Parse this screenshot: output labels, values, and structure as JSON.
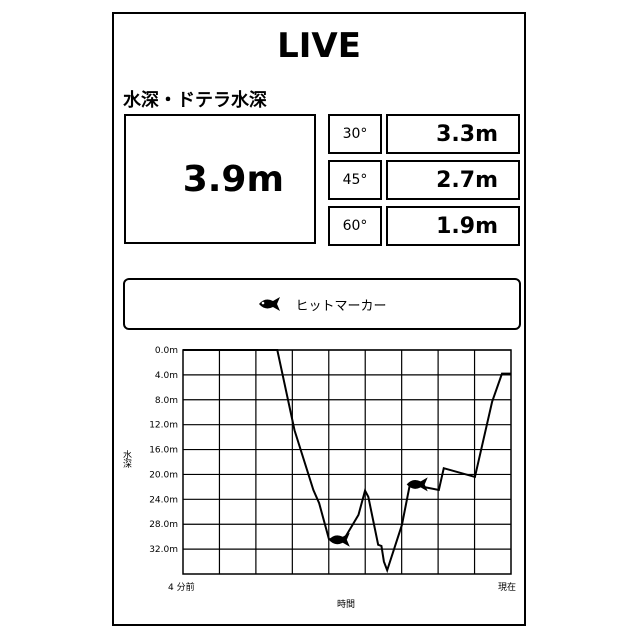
{
  "header": {
    "title": "LIVE"
  },
  "depth_section": {
    "label": "水深・ドテラ水深",
    "main_depth": "3.9m",
    "angles": [
      {
        "angle": "30°",
        "value": "3.3m"
      },
      {
        "angle": "45°",
        "value": "2.7m"
      },
      {
        "angle": "60°",
        "value": "1.9m"
      }
    ]
  },
  "hit_marker_button": {
    "label": "ヒットマーカー",
    "icon": "fish-icon"
  },
  "chart_data": {
    "type": "line",
    "xlabel": "時間",
    "ylabel": "水深",
    "x_tick_labels": [
      "4 分前",
      "現在"
    ],
    "xlim": [
      -4,
      0
    ],
    "ylim": [
      0,
      36
    ],
    "y_inverted": true,
    "y_tick_labels": [
      "0.0m",
      "4.0m",
      "8.0m",
      "12.0m",
      "16.0m",
      "20.0m",
      "24.0m",
      "28.0m",
      "32.0m"
    ],
    "y_ticks": [
      0,
      4,
      8,
      12,
      16,
      20,
      24,
      28,
      32
    ],
    "grid": true,
    "x": [
      -4,
      -2.85,
      -2.64,
      -2.41,
      -2.34,
      -2.22,
      -2.04,
      -1.86,
      -1.78,
      -1.74,
      -1.62,
      -1.58,
      -1.55,
      -1.51,
      -1.33,
      -1.23,
      -1.07,
      -0.88,
      -0.82,
      -0.44,
      -0.23,
      -0.11,
      0
    ],
    "y": [
      0,
      0,
      12.9,
      22.5,
      24.6,
      30.4,
      30.5,
      26.5,
      22.6,
      23.6,
      31.3,
      31.5,
      34,
      35.4,
      28.1,
      21.4,
      22,
      22.5,
      19,
      20.4,
      8.3,
      3.8,
      3.8
    ],
    "hit_markers": [
      {
        "x": -2.1,
        "y": 30.5
      },
      {
        "x": -1.15,
        "y": 21.6
      }
    ]
  }
}
